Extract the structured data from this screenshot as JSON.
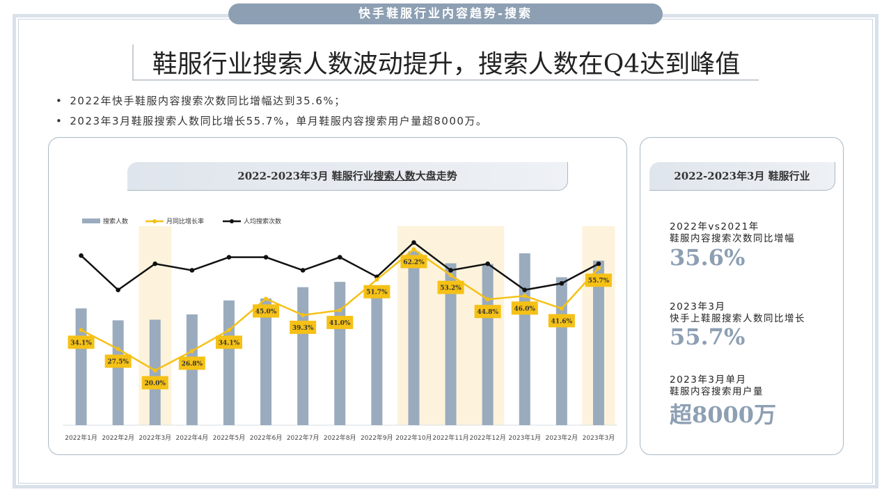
{
  "banner": "快手鞋服行业内容趋势-搜索",
  "headline": "鞋服行业搜索人数波动提升，搜索人数在Q4达到峰值",
  "bullets": [
    "2022年快手鞋服内容搜索次数同比增幅达到35.6%；",
    "2023年3月鞋服搜索人数同比增长55.7%，单月鞋服内容搜索用户量超8000万。"
  ],
  "chart_panel": {
    "title_pre": "2022-2023年3月 鞋服行业",
    "title_underlined": "搜索人数",
    "title_post": "大盘走势"
  },
  "side_panel": {
    "title": "2022-2023年3月 鞋服行业",
    "stats": [
      {
        "line1": "2022年vs2021年",
        "line2": "鞋服内容搜索次数同比增幅",
        "value": "35.6%"
      },
      {
        "line1": "2023年3月",
        "line2": "快手上鞋服搜索人数同比增长",
        "value": "55.7%"
      },
      {
        "line1": "2023年3月单月",
        "line2": "鞋服内容搜索用户量",
        "value": "超8000万"
      }
    ]
  },
  "chart_data": {
    "type": "bar+line",
    "categories": [
      "2022年1月",
      "2022年2月",
      "2022年3月",
      "2022年4月",
      "2022年5月",
      "2022年6月",
      "2022年7月",
      "2022年8月",
      "2022年9月",
      "2022年10月",
      "2022年11月",
      "2022年12月",
      "2023年1月",
      "2023年2月",
      "2023年3月"
    ],
    "series": [
      {
        "name": "搜索人数",
        "kind": "bar",
        "color": "#9aabbe",
        "values": [
          176,
          158,
          159,
          167,
          188,
          191,
          208,
          216,
          208,
          262,
          244,
          243,
          259,
          223,
          248
        ]
      },
      {
        "name": "月同比增长率",
        "kind": "line",
        "color": "#f5c116",
        "unit": "%",
        "values": [
          34.1,
          27.5,
          20.0,
          26.8,
          34.1,
          45.0,
          39.3,
          41.0,
          51.7,
          62.2,
          53.2,
          44.8,
          46.0,
          41.6,
          55.7
        ],
        "labels": [
          "34.1%",
          "27.5%",
          "20.0%",
          "26.8%",
          "34.1%",
          "45.0%",
          "39.3%",
          "41.0%",
          "51.7%",
          "62.2%",
          "53.2%",
          "44.8%",
          "46.0%",
          "41.6%",
          "55.7%"
        ]
      },
      {
        "name": "人均搜索次数",
        "kind": "line",
        "color": "#111111",
        "values": [
          82,
          61,
          77,
          73,
          81,
          81,
          73,
          81,
          69,
          90,
          73,
          77,
          61,
          65,
          77
        ]
      }
    ],
    "highlight_categories": [
      "2022年3月",
      "2022年10月",
      "2022年11月",
      "2022年12月",
      "2023年3月"
    ],
    "highlight_color": "#fdf3dc",
    "legend_position": "top-left"
  },
  "colors": {
    "accent": "#8d9fb3",
    "label_box": "#f5c116"
  }
}
